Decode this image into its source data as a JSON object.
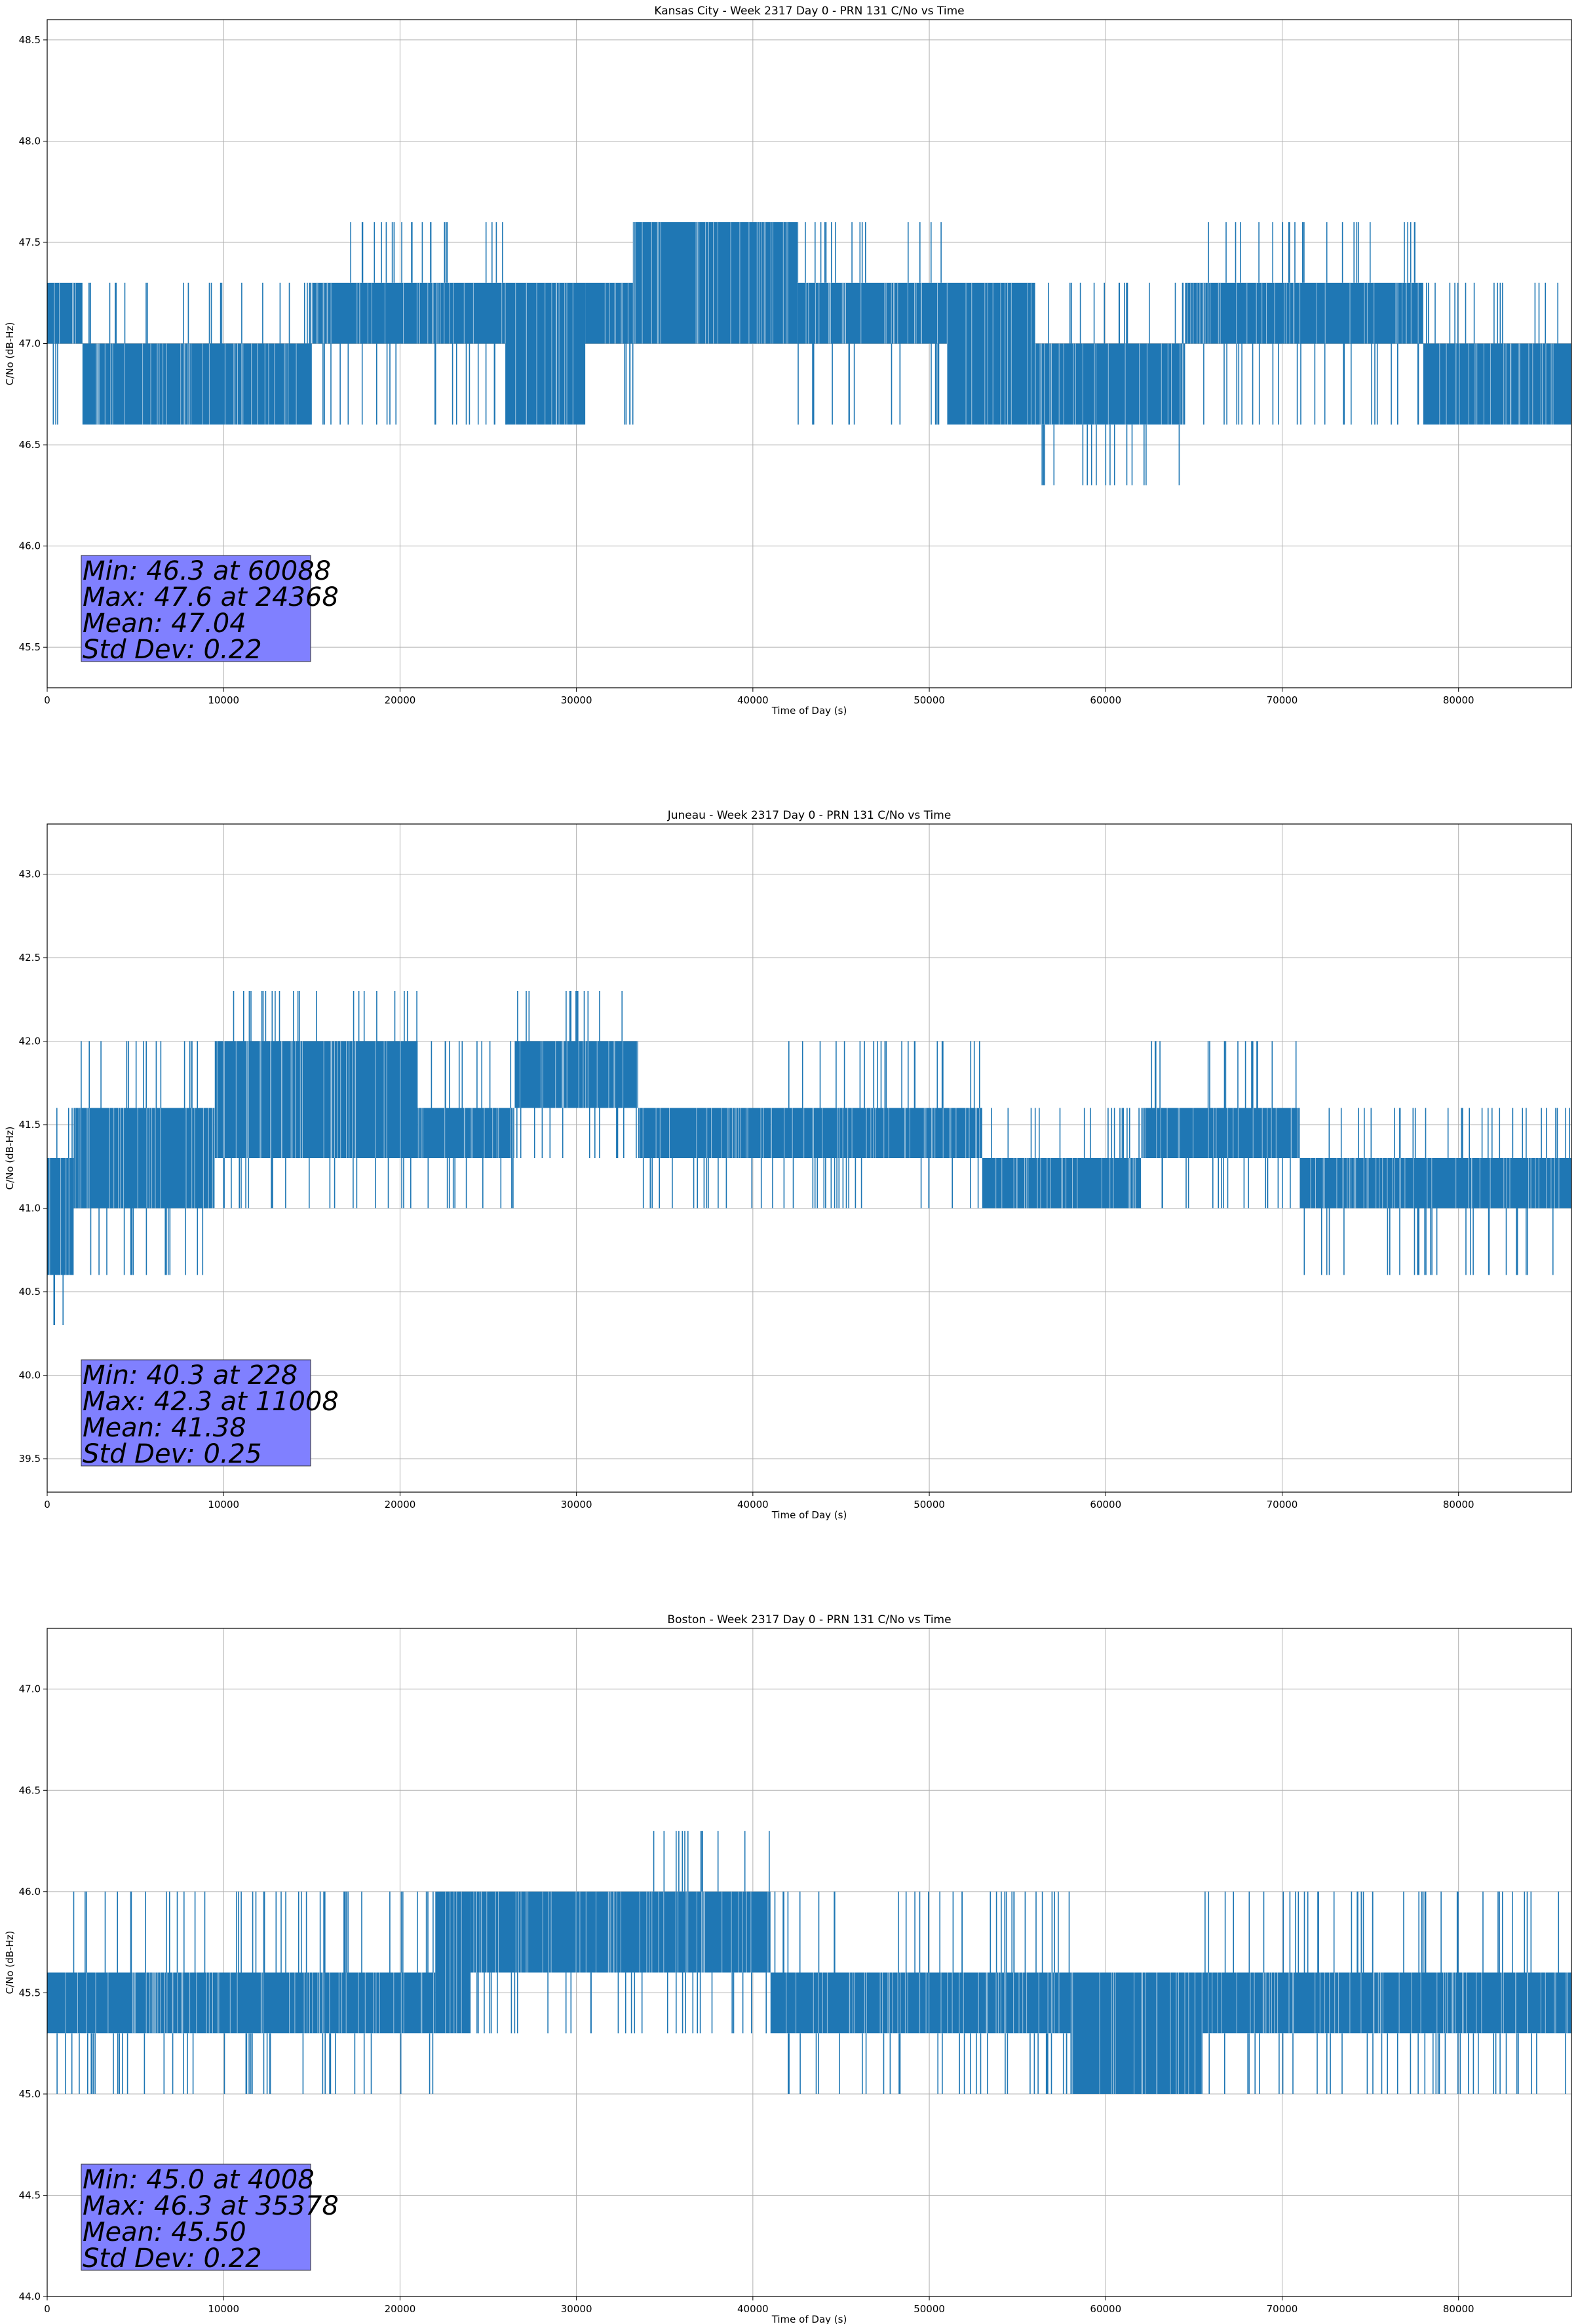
{
  "chart_data": [
    {
      "type": "line",
      "title": "Kansas City - Week 2317 Day 0 - PRN 131 C/No vs Time",
      "xlabel": "Time of Day (s)",
      "ylabel": "C/No (dB-Hz)",
      "xlim": [
        0,
        86400
      ],
      "ylim": [
        45.3,
        48.6
      ],
      "xticks": [
        0,
        10000,
        20000,
        30000,
        40000,
        50000,
        60000,
        70000,
        80000
      ],
      "yticks": [
        45.5,
        46.0,
        46.5,
        47.0,
        47.5,
        48.0,
        48.5
      ],
      "ytick_decimals": 1,
      "grid": true,
      "series_color": "#1f77b4",
      "levels": [
        46.3,
        46.6,
        47.0,
        47.3,
        47.6
      ],
      "segments": [
        {
          "start": 0,
          "end": 2000,
          "band": [
            47.0,
            47.3
          ],
          "spikes_up": [],
          "spikes_down": [
            46.6
          ]
        },
        {
          "start": 2000,
          "end": 15000,
          "band": [
            46.6,
            47.0
          ],
          "spikes_up": [
            47.3
          ],
          "spikes_down": []
        },
        {
          "start": 15000,
          "end": 26000,
          "band": [
            47.0,
            47.3
          ],
          "spikes_up": [
            47.6
          ],
          "spikes_down": [
            46.6
          ]
        },
        {
          "start": 26000,
          "end": 30500,
          "band": [
            46.6,
            47.3
          ],
          "spikes_up": [],
          "spikes_down": []
        },
        {
          "start": 30500,
          "end": 33200,
          "band": [
            47.0,
            47.3
          ],
          "spikes_up": [],
          "spikes_down": [
            46.6
          ]
        },
        {
          "start": 33200,
          "end": 42500,
          "band": [
            47.0,
            47.6
          ],
          "spikes_up": [],
          "spikes_down": []
        },
        {
          "start": 42500,
          "end": 51000,
          "band": [
            47.0,
            47.3
          ],
          "spikes_up": [
            47.6
          ],
          "spikes_down": [
            46.6
          ]
        },
        {
          "start": 51000,
          "end": 56000,
          "band": [
            46.6,
            47.3
          ],
          "spikes_up": [],
          "spikes_down": []
        },
        {
          "start": 56000,
          "end": 64500,
          "band": [
            46.6,
            47.0
          ],
          "spikes_up": [
            47.3
          ],
          "spikes_down": [
            46.3
          ]
        },
        {
          "start": 64500,
          "end": 78000,
          "band": [
            47.0,
            47.3
          ],
          "spikes_up": [
            47.6
          ],
          "spikes_down": [
            46.6
          ]
        },
        {
          "start": 78000,
          "end": 86400,
          "band": [
            46.6,
            47.0
          ],
          "spikes_up": [
            47.3
          ],
          "spikes_down": []
        }
      ],
      "stats": [
        "Min: 46.3 at 60088",
        "Max: 47.6 at 24368",
        "Mean: 47.04",
        "Std Dev: 0.22"
      ]
    },
    {
      "type": "line",
      "title": "Juneau - Week 2317 Day 0 - PRN 131 C/No vs Time",
      "xlabel": "Time of Day (s)",
      "ylabel": "C/No (dB-Hz)",
      "xlim": [
        0,
        86400
      ],
      "ylim": [
        39.3,
        43.3
      ],
      "xticks": [
        0,
        10000,
        20000,
        30000,
        40000,
        50000,
        60000,
        70000,
        80000
      ],
      "yticks": [
        39.5,
        40.0,
        40.5,
        41.0,
        41.5,
        42.0,
        42.5,
        43.0
      ],
      "ytick_decimals": 1,
      "grid": true,
      "series_color": "#1f77b4",
      "levels": [
        40.3,
        40.6,
        41.0,
        41.3,
        41.6,
        42.0,
        42.3
      ],
      "segments": [
        {
          "start": 0,
          "end": 1500,
          "band": [
            40.6,
            41.3
          ],
          "spikes_up": [
            41.6
          ],
          "spikes_down": [
            40.3
          ]
        },
        {
          "start": 1500,
          "end": 9500,
          "band": [
            41.0,
            41.6
          ],
          "spikes_up": [
            42.0
          ],
          "spikes_down": [
            40.6
          ]
        },
        {
          "start": 9500,
          "end": 21000,
          "band": [
            41.3,
            42.0
          ],
          "spikes_up": [
            42.3
          ],
          "spikes_down": [
            41.0
          ]
        },
        {
          "start": 21000,
          "end": 26500,
          "band": [
            41.3,
            41.6
          ],
          "spikes_up": [
            42.0
          ],
          "spikes_down": [
            41.0
          ]
        },
        {
          "start": 26500,
          "end": 33500,
          "band": [
            41.6,
            42.0
          ],
          "spikes_up": [
            42.3
          ],
          "spikes_down": [
            41.3
          ]
        },
        {
          "start": 33500,
          "end": 41000,
          "band": [
            41.3,
            41.6
          ],
          "spikes_up": [],
          "spikes_down": [
            41.0
          ]
        },
        {
          "start": 41000,
          "end": 53000,
          "band": [
            41.3,
            41.6
          ],
          "spikes_up": [
            42.0
          ],
          "spikes_down": [
            41.0
          ]
        },
        {
          "start": 53000,
          "end": 62000,
          "band": [
            41.0,
            41.3
          ],
          "spikes_up": [
            41.6
          ],
          "spikes_down": []
        },
        {
          "start": 62000,
          "end": 71000,
          "band": [
            41.3,
            41.6
          ],
          "spikes_up": [
            42.0
          ],
          "spikes_down": [
            41.0
          ]
        },
        {
          "start": 71000,
          "end": 86400,
          "band": [
            41.0,
            41.3
          ],
          "spikes_up": [
            41.6
          ],
          "spikes_down": [
            40.6
          ]
        }
      ],
      "stats": [
        "Min: 40.3 at 228",
        "Max: 42.3 at 11008",
        "Mean: 41.38",
        "Std Dev: 0.25"
      ]
    },
    {
      "type": "line",
      "title": "Boston - Week 2317 Day 0 - PRN 131 C/No vs Time",
      "xlabel": "Time of Day (s)",
      "ylabel": "C/No (dB-Hz)",
      "xlim": [
        0,
        86400
      ],
      "ylim": [
        44.0,
        47.3
      ],
      "xticks": [
        0,
        10000,
        20000,
        30000,
        40000,
        50000,
        60000,
        70000,
        80000
      ],
      "yticks": [
        44.0,
        44.5,
        45.0,
        45.5,
        46.0,
        46.5,
        47.0
      ],
      "ytick_decimals": 1,
      "grid": true,
      "series_color": "#1f77b4",
      "levels": [
        45.0,
        45.3,
        45.6,
        46.0,
        46.3
      ],
      "segments": [
        {
          "start": 0,
          "end": 22000,
          "band": [
            45.3,
            45.6
          ],
          "spikes_up": [
            46.0
          ],
          "spikes_down": [
            45.0
          ]
        },
        {
          "start": 22000,
          "end": 24000,
          "band": [
            45.3,
            46.0
          ],
          "spikes_up": [],
          "spikes_down": []
        },
        {
          "start": 24000,
          "end": 34000,
          "band": [
            45.6,
            46.0
          ],
          "spikes_up": [],
          "spikes_down": [
            45.3
          ]
        },
        {
          "start": 34000,
          "end": 41000,
          "band": [
            45.6,
            46.0
          ],
          "spikes_up": [
            46.3
          ],
          "spikes_down": [
            45.3
          ]
        },
        {
          "start": 41000,
          "end": 58000,
          "band": [
            45.3,
            45.6
          ],
          "spikes_up": [
            46.0
          ],
          "spikes_down": [
            45.0
          ]
        },
        {
          "start": 58000,
          "end": 65500,
          "band": [
            45.0,
            45.6
          ],
          "spikes_up": [],
          "spikes_down": []
        },
        {
          "start": 65500,
          "end": 86400,
          "band": [
            45.3,
            45.6
          ],
          "spikes_up": [
            46.0
          ],
          "spikes_down": [
            45.0
          ]
        }
      ],
      "stats": [
        "Min: 45.0 at 4008",
        "Max: 46.3 at 35378",
        "Mean: 45.50",
        "Std Dev: 0.22"
      ]
    }
  ]
}
